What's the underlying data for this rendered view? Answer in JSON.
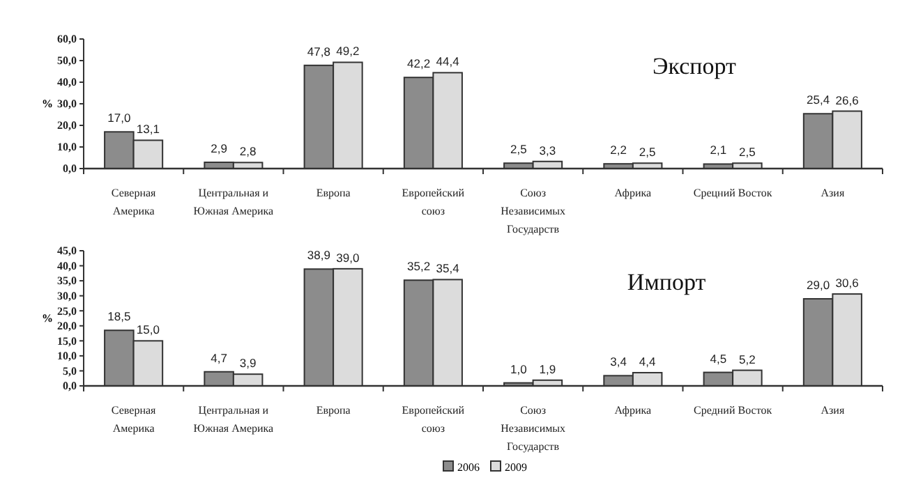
{
  "chart_data": [
    {
      "type": "bar",
      "title": "Экспорт",
      "ylabel": "%",
      "categories": [
        "Северная Америка",
        "Центральная и Южная Америка",
        "Европа",
        "Европейский союз",
        "Союз Независимых Государств",
        "Африка",
        "Срецний Восток",
        "Азия"
      ],
      "ylim": [
        0,
        60
      ],
      "yticks": [
        {
          "value": 0,
          "label": "0,0"
        },
        {
          "value": 10,
          "label": "10,0"
        },
        {
          "value": 20,
          "label": "20,0"
        },
        {
          "value": 30,
          "label": "30,0"
        },
        {
          "value": 40,
          "label": "40,0"
        },
        {
          "value": 50,
          "label": "50,0"
        },
        {
          "value": 60,
          "label": "60,0"
        }
      ],
      "grid": false,
      "legend": false,
      "series": [
        {
          "color": "#8c8c8c",
          "values": [
            17.0,
            2.9,
            47.8,
            42.2,
            2.5,
            2.2,
            2.1,
            25.4
          ],
          "value_labels": [
            "17,0",
            "2,9",
            "47,8",
            "42,2",
            "2,5",
            "2,2",
            "2,1",
            "25,4"
          ]
        },
        {
          "color": "#dcdcdc",
          "values": [
            13.1,
            2.8,
            49.2,
            44.4,
            3.3,
            2.5,
            2.5,
            26.6
          ],
          "value_labels": [
            "13,1",
            "2,8",
            "49,2",
            "44,4",
            "3,3",
            "2,5",
            "2,5",
            "26,6"
          ]
        }
      ]
    },
    {
      "type": "bar",
      "title": "Импорт",
      "ylabel": "%",
      "categories": [
        "Северная Америка",
        "Центральная и Южная Америка",
        "Европа",
        "Европейский союз",
        "Союз Независимых Государств",
        "Африка",
        "Средний Восток",
        "Азия"
      ],
      "ylim": [
        0,
        45
      ],
      "yticks": [
        {
          "value": 0,
          "label": "0,0"
        },
        {
          "value": 5,
          "label": "5,0"
        },
        {
          "value": 10,
          "label": "10,0"
        },
        {
          "value": 15,
          "label": "15,0"
        },
        {
          "value": 20,
          "label": "20,0"
        },
        {
          "value": 25,
          "label": "25,0"
        },
        {
          "value": 30,
          "label": "30,0"
        },
        {
          "value": 35,
          "label": "35,0"
        },
        {
          "value": 40,
          "label": "40,0"
        },
        {
          "value": 45,
          "label": "45,0"
        }
      ],
      "grid": false,
      "legend": "bottom",
      "series": [
        {
          "name": "2006",
          "color": "#8c8c8c",
          "values": [
            18.5,
            4.7,
            38.9,
            35.2,
            1.0,
            3.4,
            4.5,
            29.0
          ],
          "value_labels": [
            "18,5",
            "4,7",
            "38,9",
            "35,2",
            "1,0",
            "3,4",
            "4,5",
            "29,0"
          ]
        },
        {
          "name": "2009",
          "color": "#dcdcdc",
          "values": [
            15.0,
            3.9,
            39.0,
            35.4,
            1.9,
            4.4,
            5.2,
            30.6
          ],
          "value_labels": [
            "15,0",
            "3,9",
            "39,0",
            "35,4",
            "1,9",
            "4,4",
            "5,2",
            "30,6"
          ]
        }
      ]
    }
  ]
}
